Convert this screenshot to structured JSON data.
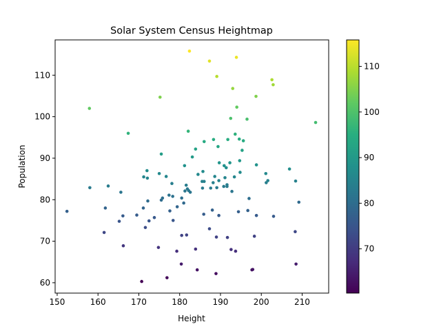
{
  "chart_data": {
    "type": "scatter",
    "title": "Solar System Census Heightmap",
    "xlabel": "Height",
    "ylabel": "Population",
    "xlim": [
      149.5,
      216.5
    ],
    "ylim": [
      57.5,
      118.5
    ],
    "xticks": [
      150,
      160,
      170,
      180,
      190,
      200,
      210
    ],
    "yticks": [
      60,
      70,
      80,
      90,
      100,
      110
    ],
    "colorbar": {
      "colormap": "viridis",
      "range": [
        60.3,
        115.8
      ],
      "ticks": [
        70,
        80,
        90,
        100,
        110
      ]
    },
    "grid": false,
    "points": [
      {
        "x": 152.4,
        "y": 77.2
      },
      {
        "x": 157.9,
        "y": 102.0
      },
      {
        "x": 158.0,
        "y": 82.9
      },
      {
        "x": 161.5,
        "y": 72.1
      },
      {
        "x": 161.8,
        "y": 78.0
      },
      {
        "x": 162.5,
        "y": 83.3
      },
      {
        "x": 165.2,
        "y": 74.8
      },
      {
        "x": 165.6,
        "y": 81.8
      },
      {
        "x": 166.1,
        "y": 76.1
      },
      {
        "x": 166.2,
        "y": 68.9
      },
      {
        "x": 167.4,
        "y": 96.0
      },
      {
        "x": 169.5,
        "y": 76.3
      },
      {
        "x": 170.7,
        "y": 60.3
      },
      {
        "x": 171.1,
        "y": 78.0
      },
      {
        "x": 171.2,
        "y": 85.5
      },
      {
        "x": 171.6,
        "y": 73.3
      },
      {
        "x": 172.0,
        "y": 87.0
      },
      {
        "x": 172.1,
        "y": 85.2
      },
      {
        "x": 172.2,
        "y": 79.7
      },
      {
        "x": 172.5,
        "y": 74.9
      },
      {
        "x": 173.8,
        "y": 75.7
      },
      {
        "x": 174.8,
        "y": 68.5
      },
      {
        "x": 175.0,
        "y": 86.3
      },
      {
        "x": 175.2,
        "y": 104.7
      },
      {
        "x": 175.5,
        "y": 91.0
      },
      {
        "x": 175.5,
        "y": 79.9
      },
      {
        "x": 175.8,
        "y": 80.4
      },
      {
        "x": 176.7,
        "y": 85.6
      },
      {
        "x": 176.9,
        "y": 61.2
      },
      {
        "x": 177.4,
        "y": 81.1
      },
      {
        "x": 177.6,
        "y": 77.3
      },
      {
        "x": 178.1,
        "y": 83.9
      },
      {
        "x": 178.3,
        "y": 80.8
      },
      {
        "x": 178.4,
        "y": 75.0
      },
      {
        "x": 179.3,
        "y": 67.6
      },
      {
        "x": 179.4,
        "y": 78.3
      },
      {
        "x": 180.4,
        "y": 64.5
      },
      {
        "x": 180.5,
        "y": 71.4
      },
      {
        "x": 180.5,
        "y": 80.4
      },
      {
        "x": 181.0,
        "y": 79.2
      },
      {
        "x": 181.2,
        "y": 88.2
      },
      {
        "x": 181.3,
        "y": 82.1
      },
      {
        "x": 181.6,
        "y": 83.5
      },
      {
        "x": 181.7,
        "y": 71.5
      },
      {
        "x": 181.9,
        "y": 82.6
      },
      {
        "x": 182.1,
        "y": 96.5
      },
      {
        "x": 182.2,
        "y": 82.2
      },
      {
        "x": 182.4,
        "y": 115.8
      },
      {
        "x": 182.6,
        "y": 81.8
      },
      {
        "x": 183.1,
        "y": 90.3
      },
      {
        "x": 183.9,
        "y": 92.2
      },
      {
        "x": 183.9,
        "y": 68.1
      },
      {
        "x": 184.3,
        "y": 63.1
      },
      {
        "x": 184.5,
        "y": 86.1
      },
      {
        "x": 185.5,
        "y": 84.4
      },
      {
        "x": 185.6,
        "y": 82.8
      },
      {
        "x": 185.7,
        "y": 86.8
      },
      {
        "x": 185.9,
        "y": 76.5
      },
      {
        "x": 186.0,
        "y": 94.0
      },
      {
        "x": 186.0,
        "y": 84.4
      },
      {
        "x": 187.3,
        "y": 113.4
      },
      {
        "x": 187.3,
        "y": 73.0
      },
      {
        "x": 187.6,
        "y": 82.8
      },
      {
        "x": 188.0,
        "y": 77.5
      },
      {
        "x": 188.2,
        "y": 84.1
      },
      {
        "x": 188.3,
        "y": 94.5
      },
      {
        "x": 188.6,
        "y": 85.6
      },
      {
        "x": 188.9,
        "y": 62.2
      },
      {
        "x": 189.0,
        "y": 71.0
      },
      {
        "x": 189.1,
        "y": 109.7
      },
      {
        "x": 189.1,
        "y": 82.9
      },
      {
        "x": 189.4,
        "y": 92.8
      },
      {
        "x": 189.6,
        "y": 76.2
      },
      {
        "x": 189.6,
        "y": 84.6
      },
      {
        "x": 189.7,
        "y": 88.9
      },
      {
        "x": 190.8,
        "y": 83.2
      },
      {
        "x": 190.9,
        "y": 88.2
      },
      {
        "x": 191.1,
        "y": 85.3
      },
      {
        "x": 191.4,
        "y": 87.7
      },
      {
        "x": 191.6,
        "y": 83.2
      },
      {
        "x": 191.6,
        "y": 83.6
      },
      {
        "x": 191.7,
        "y": 70.9
      },
      {
        "x": 191.8,
        "y": 94.5
      },
      {
        "x": 192.3,
        "y": 88.9
      },
      {
        "x": 192.5,
        "y": 99.6
      },
      {
        "x": 192.6,
        "y": 68.0
      },
      {
        "x": 192.8,
        "y": 82.0
      },
      {
        "x": 193.0,
        "y": 106.8
      },
      {
        "x": 193.4,
        "y": 85.5
      },
      {
        "x": 193.6,
        "y": 95.8
      },
      {
        "x": 193.7,
        "y": 67.6
      },
      {
        "x": 193.9,
        "y": 114.3
      },
      {
        "x": 194.0,
        "y": 102.3
      },
      {
        "x": 194.4,
        "y": 77.1
      },
      {
        "x": 194.6,
        "y": 94.6
      },
      {
        "x": 194.7,
        "y": 89.4
      },
      {
        "x": 194.8,
        "y": 86.6
      },
      {
        "x": 195.3,
        "y": 91.9
      },
      {
        "x": 195.6,
        "y": 94.2
      },
      {
        "x": 196.5,
        "y": 99.4
      },
      {
        "x": 196.7,
        "y": 77.4
      },
      {
        "x": 197.0,
        "y": 80.3
      },
      {
        "x": 197.7,
        "y": 63.1
      },
      {
        "x": 197.9,
        "y": 63.2
      },
      {
        "x": 198.3,
        "y": 71.2
      },
      {
        "x": 198.7,
        "y": 104.9
      },
      {
        "x": 198.8,
        "y": 88.4
      },
      {
        "x": 198.8,
        "y": 76.2
      },
      {
        "x": 201.1,
        "y": 86.3
      },
      {
        "x": 201.2,
        "y": 84.1
      },
      {
        "x": 201.6,
        "y": 84.6
      },
      {
        "x": 202.6,
        "y": 108.9
      },
      {
        "x": 202.9,
        "y": 107.7
      },
      {
        "x": 203.0,
        "y": 76.0
      },
      {
        "x": 206.9,
        "y": 87.4
      },
      {
        "x": 208.3,
        "y": 72.3
      },
      {
        "x": 208.4,
        "y": 84.5
      },
      {
        "x": 208.5,
        "y": 64.5
      },
      {
        "x": 209.2,
        "y": 79.4
      },
      {
        "x": 213.3,
        "y": 98.6
      }
    ]
  }
}
